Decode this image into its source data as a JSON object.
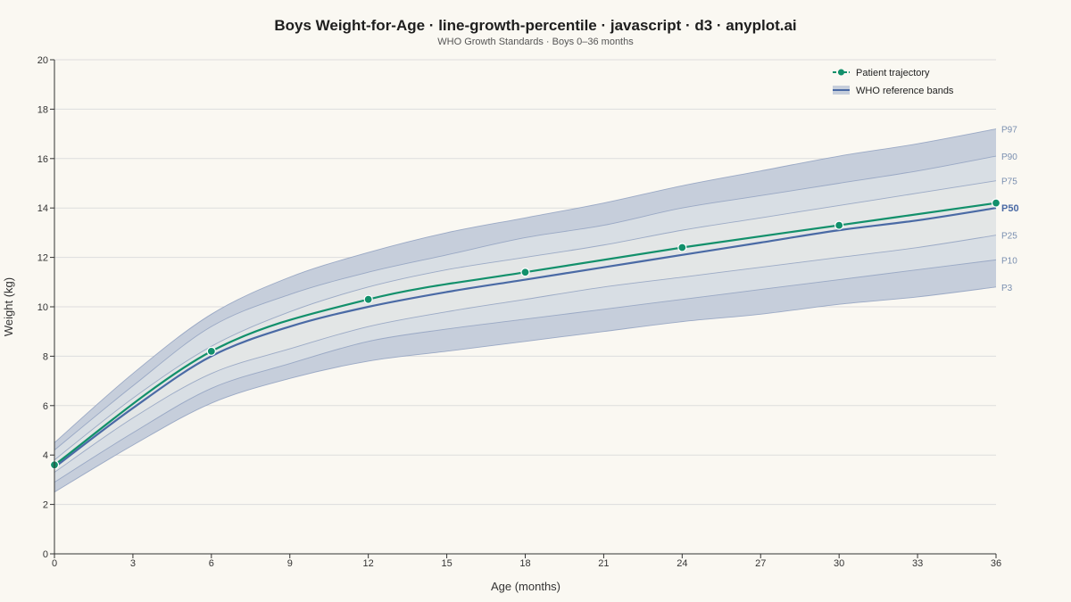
{
  "page": {
    "title": "Boys Weight-for-Age · line-growth-percentile · javascript · d3 · anyplot.ai",
    "subtitle": "WHO Growth Standards · Boys 0–36 months"
  },
  "colors": {
    "background": "#faf8f2",
    "band_outer": "#c6cedb",
    "band_mid": "#d8dee4",
    "band_inner": "#e3e6e6",
    "band_stroke": "#8fa0bf",
    "median": "#4a6aa5",
    "patient": "#12906b",
    "grid": "#dddddd"
  },
  "chart_data": {
    "type": "line",
    "title": "Boys Weight-for-Age · line-growth-percentile · javascript · d3 · anyplot.ai",
    "subtitle": "WHO Growth Standards · Boys 0–36 months",
    "xlabel": "Age (months)",
    "ylabel": "Weight (kg)",
    "xlim": [
      0,
      36
    ],
    "ylim": [
      0,
      20
    ],
    "x_ticks": [
      0,
      3,
      6,
      9,
      12,
      15,
      18,
      21,
      24,
      27,
      30,
      33,
      36
    ],
    "y_ticks": [
      0,
      2,
      4,
      6,
      8,
      10,
      12,
      14,
      16,
      18,
      20
    ],
    "grid": true,
    "legend": {
      "position": "top-right",
      "entries": [
        "Patient trajectory",
        "WHO reference bands"
      ]
    },
    "percentiles": {
      "x": [
        0,
        3,
        6,
        9,
        12,
        15,
        18,
        21,
        24,
        27,
        30,
        33,
        36
      ],
      "series": [
        {
          "name": "P3",
          "values": [
            2.5,
            4.4,
            6.1,
            7.1,
            7.8,
            8.2,
            8.6,
            9.0,
            9.4,
            9.7,
            10.1,
            10.4,
            10.8
          ]
        },
        {
          "name": "P10",
          "values": [
            2.9,
            4.9,
            6.7,
            7.7,
            8.6,
            9.1,
            9.5,
            9.9,
            10.3,
            10.7,
            11.1,
            11.5,
            11.9
          ]
        },
        {
          "name": "P25",
          "values": [
            3.3,
            5.5,
            7.3,
            8.3,
            9.2,
            9.8,
            10.3,
            10.8,
            11.2,
            11.6,
            12.0,
            12.4,
            12.9
          ]
        },
        {
          "name": "P50",
          "values": [
            3.5,
            5.9,
            8.0,
            9.2,
            10.0,
            10.6,
            11.1,
            11.6,
            12.1,
            12.6,
            13.1,
            13.5,
            14.0
          ]
        },
        {
          "name": "P75",
          "values": [
            3.8,
            6.3,
            8.4,
            9.8,
            10.8,
            11.5,
            12.0,
            12.5,
            13.1,
            13.6,
            14.1,
            14.6,
            15.1
          ]
        },
        {
          "name": "P90",
          "values": [
            4.2,
            6.8,
            9.2,
            10.5,
            11.4,
            12.1,
            12.8,
            13.3,
            14.0,
            14.5,
            15.0,
            15.5,
            16.1
          ]
        },
        {
          "name": "P97",
          "values": [
            4.5,
            7.3,
            9.7,
            11.2,
            12.2,
            13.0,
            13.6,
            14.2,
            14.9,
            15.5,
            16.1,
            16.6,
            17.2
          ]
        }
      ]
    },
    "patient": {
      "name": "Patient trajectory",
      "x": [
        0,
        6,
        12,
        18,
        24,
        30,
        36
      ],
      "values": [
        3.6,
        8.2,
        10.3,
        11.4,
        12.4,
        13.3,
        14.2
      ]
    }
  }
}
